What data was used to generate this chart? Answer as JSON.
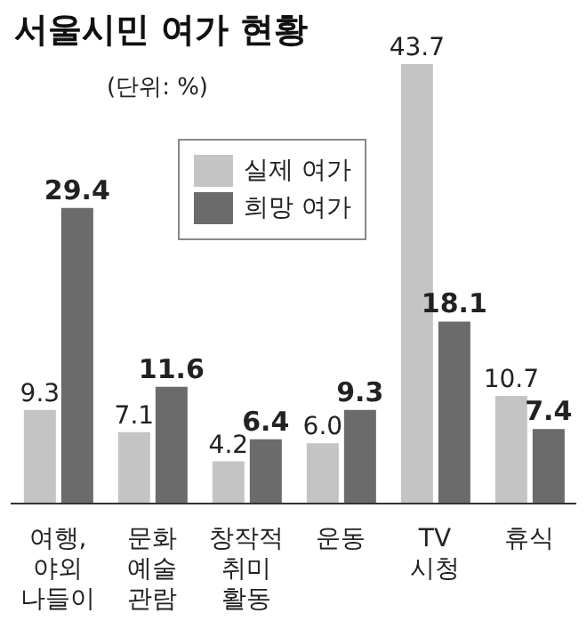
{
  "chart_data": {
    "type": "bar",
    "title": "서울시민 여가 현황",
    "subtitle": "(단위: %)",
    "categories": [
      "여행, 야외 나들이",
      "문화 예술 관람",
      "창작적 취미 활동",
      "운동",
      "TV 시청",
      "휴식"
    ],
    "series": [
      {
        "name": "실제 여가",
        "color": "#c4c4c4",
        "values": [
          9.3,
          7.1,
          4.2,
          6.0,
          43.7,
          10.7
        ],
        "value_labels": [
          "9.3",
          "7.1",
          "4.2",
          "6.0",
          "43.7",
          "10.7"
        ]
      },
      {
        "name": "희망 여가",
        "color": "#6b6b6b",
        "values": [
          29.4,
          11.6,
          6.4,
          9.3,
          18.1,
          7.4
        ],
        "value_labels": [
          "29.4",
          "11.6",
          "6.4",
          "9.3",
          "18.1",
          "7.4"
        ]
      }
    ],
    "legend": "top left",
    "grid": false
  }
}
